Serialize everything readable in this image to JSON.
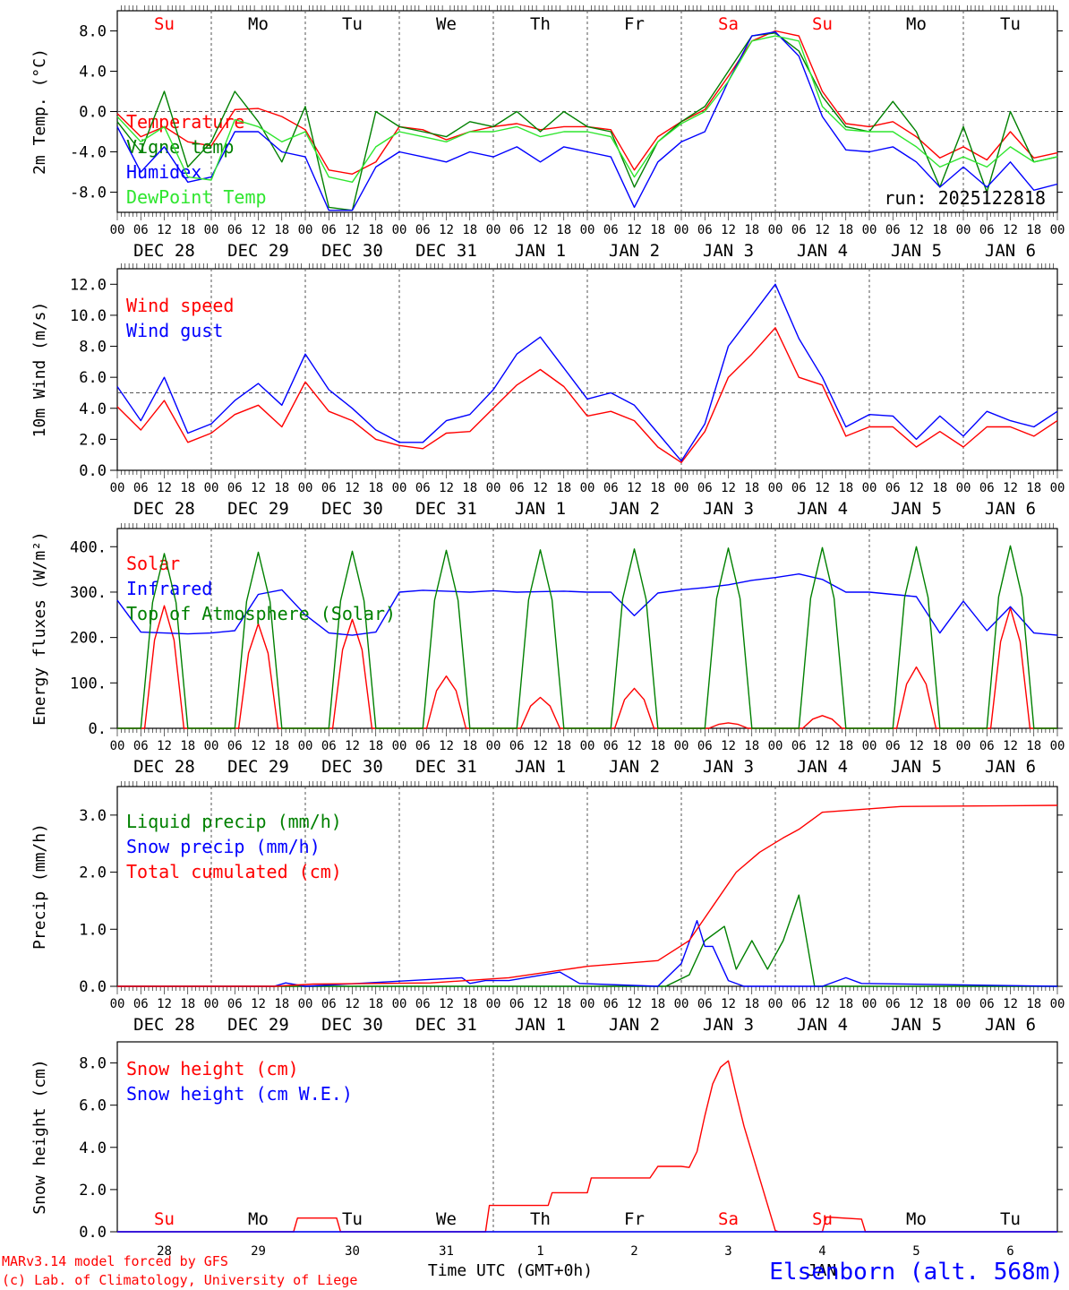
{
  "colors": {
    "red": "#ff0000",
    "green": "#008000",
    "lightgreen": "#2ee62e",
    "blue": "#0000ff",
    "grid": "#555555"
  },
  "days": [
    {
      "abbr": "Su",
      "weekend": true,
      "date": "DEC 28",
      "num": "28"
    },
    {
      "abbr": "Mo",
      "weekend": false,
      "date": "DEC 29",
      "num": "29"
    },
    {
      "abbr": "Tu",
      "weekend": false,
      "date": "DEC 30",
      "num": "30"
    },
    {
      "abbr": "We",
      "weekend": false,
      "date": "DEC 31",
      "num": "31"
    },
    {
      "abbr": "Th",
      "weekend": false,
      "date": "JAN  1",
      "num": "1"
    },
    {
      "abbr": "Fr",
      "weekend": false,
      "date": "JAN  2",
      "num": "2"
    },
    {
      "abbr": "Sa",
      "weekend": true,
      "date": "JAN  3",
      "num": "3"
    },
    {
      "abbr": "Su",
      "weekend": true,
      "date": "JAN  4",
      "num": "4"
    },
    {
      "abbr": "Mo",
      "weekend": false,
      "date": "JAN  5",
      "num": "5"
    },
    {
      "abbr": "Tu",
      "weekend": false,
      "date": "JAN  6",
      "num": "6"
    }
  ],
  "hour_ticks": [
    "00",
    "06",
    "12",
    "18"
  ],
  "run_label": "run: 2025122818",
  "footer": {
    "model": "MARv3.14 model forced by GFS",
    "lab": "(c) Lab. of Climatology, University of Liege",
    "axis_title": "Time UTC (GMT+0h)",
    "month_label": "JAN",
    "station": "Elsenborn (alt. 568m)"
  },
  "chart_data": [
    {
      "type": "line",
      "title": "2m Temp.",
      "ylabel": "2m Temp. (°C)",
      "x_unit": "hours since DEC 28 00 UTC",
      "ylim": [
        -10,
        10
      ],
      "yticks": [
        -8,
        -4,
        0,
        4,
        8
      ],
      "ytick_labels": [
        "-8.0",
        "-4.0",
        "0.0",
        "4.0",
        "8.0"
      ],
      "ref_line": 0,
      "series": [
        {
          "name": "Temperature",
          "color": "red",
          "x": [
            0,
            6,
            12,
            18,
            24,
            30,
            36,
            42,
            48,
            54,
            60,
            66,
            72,
            78,
            84,
            90,
            96,
            102,
            108,
            114,
            120,
            126,
            132,
            138,
            144,
            150,
            156,
            162,
            168,
            174,
            180,
            186,
            192,
            198,
            204,
            210,
            216,
            222,
            228,
            234,
            240
          ],
          "values": [
            -0.2,
            -2.5,
            -1.5,
            -3.0,
            -3.4,
            0.2,
            0.3,
            -0.5,
            -1.8,
            -5.8,
            -6.2,
            -5.0,
            -1.5,
            -1.8,
            -2.8,
            -2.0,
            -1.5,
            -1.2,
            -1.8,
            -1.5,
            -1.5,
            -1.8,
            -5.8,
            -2.5,
            -1.0,
            0.2,
            3.5,
            7.0,
            8.0,
            7.5,
            2.0,
            -1.2,
            -1.5,
            -1.0,
            -2.5,
            -4.6,
            -3.5,
            -4.8,
            -2.0,
            -4.6,
            -4.1
          ]
        },
        {
          "name": "Vigne temp",
          "color": "green",
          "x": [
            0,
            6,
            12,
            18,
            24,
            30,
            36,
            42,
            48,
            54,
            60,
            66,
            72,
            78,
            84,
            90,
            96,
            102,
            108,
            114,
            120,
            126,
            132,
            138,
            144,
            150,
            156,
            162,
            168,
            174,
            180,
            186,
            192,
            198,
            204,
            210,
            216,
            222,
            228,
            234,
            240
          ],
          "values": [
            -1.0,
            -4.0,
            2.0,
            -5.5,
            -3.0,
            2.0,
            -1.0,
            -5.0,
            0.5,
            -9.5,
            -9.8,
            0.0,
            -1.5,
            -2.0,
            -2.5,
            -1.0,
            -1.5,
            0.0,
            -2.0,
            0.0,
            -1.5,
            -2.0,
            -7.5,
            -3.0,
            -1.0,
            0.5,
            4.0,
            7.5,
            7.8,
            6.0,
            1.5,
            -1.5,
            -2.0,
            1.0,
            -2.0,
            -7.5,
            -1.5,
            -8.0,
            0.0,
            -5.0,
            -4.5
          ]
        },
        {
          "name": "Humidex",
          "color": "blue",
          "x": [
            0,
            6,
            12,
            18,
            24,
            30,
            36,
            42,
            48,
            54,
            60,
            66,
            72,
            78,
            84,
            90,
            96,
            102,
            108,
            114,
            120,
            126,
            132,
            138,
            144,
            150,
            156,
            162,
            168,
            174,
            180,
            186,
            192,
            198,
            204,
            210,
            216,
            222,
            228,
            234,
            240
          ],
          "values": [
            -1.5,
            -6.0,
            -3.5,
            -7.0,
            -6.5,
            -2.0,
            -2.0,
            -4.0,
            -4.5,
            -9.8,
            -9.8,
            -5.5,
            -4.0,
            -4.5,
            -5.0,
            -4.0,
            -4.5,
            -3.5,
            -5.0,
            -3.5,
            -4.0,
            -4.5,
            -9.5,
            -5.0,
            -3.0,
            -2.0,
            3.0,
            7.5,
            7.9,
            5.5,
            -0.5,
            -3.8,
            -4.0,
            -3.5,
            -5.0,
            -7.5,
            -5.5,
            -7.5,
            -5.0,
            -7.8,
            -7.2
          ]
        },
        {
          "name": "DewPoint Temp",
          "color": "lightgreen",
          "x": [
            0,
            6,
            12,
            18,
            24,
            30,
            36,
            42,
            48,
            54,
            60,
            66,
            72,
            78,
            84,
            90,
            96,
            102,
            108,
            114,
            120,
            126,
            132,
            138,
            144,
            150,
            156,
            162,
            168,
            174,
            180,
            186,
            192,
            198,
            204,
            210,
            216,
            222,
            228,
            234,
            240
          ],
          "values": [
            -0.5,
            -3.0,
            -1.5,
            -6.5,
            -6.8,
            -0.8,
            -1.5,
            -3.0,
            -2.0,
            -6.5,
            -7.0,
            -3.5,
            -2.0,
            -2.5,
            -3.0,
            -2.0,
            -2.0,
            -1.5,
            -2.5,
            -2.0,
            -2.0,
            -2.5,
            -6.5,
            -3.0,
            -1.2,
            0.0,
            3.0,
            7.0,
            7.5,
            7.0,
            0.5,
            -1.8,
            -2.0,
            -2.0,
            -3.5,
            -5.5,
            -4.5,
            -5.5,
            -3.5,
            -5.0,
            -4.5
          ]
        }
      ]
    },
    {
      "type": "line",
      "title": "10m Wind",
      "ylabel": "10m Wind (m/s)",
      "x_unit": "hours since DEC 28 00 UTC",
      "ylim": [
        0,
        13
      ],
      "yticks": [
        0,
        2,
        4,
        6,
        8,
        10,
        12
      ],
      "ytick_labels": [
        "0.0",
        "2.0",
        "4.0",
        "6.0",
        "8.0",
        "10.0",
        "12.0"
      ],
      "ref_line": 5,
      "series": [
        {
          "name": "Wind speed",
          "color": "red",
          "x": [
            0,
            6,
            12,
            18,
            24,
            30,
            36,
            42,
            48,
            54,
            60,
            66,
            72,
            78,
            84,
            90,
            96,
            102,
            108,
            114,
            120,
            126,
            132,
            138,
            144,
            150,
            156,
            162,
            168,
            174,
            180,
            186,
            192,
            198,
            204,
            210,
            216,
            222,
            228,
            234,
            240
          ],
          "values": [
            4.1,
            2.6,
            4.5,
            1.8,
            2.4,
            3.6,
            4.2,
            2.8,
            5.7,
            3.8,
            3.2,
            2.0,
            1.6,
            1.4,
            2.4,
            2.5,
            4.0,
            5.5,
            6.5,
            5.4,
            3.5,
            3.8,
            3.2,
            1.5,
            0.5,
            2.5,
            6.0,
            7.5,
            9.2,
            6.0,
            5.5,
            2.2,
            2.8,
            2.8,
            1.5,
            2.5,
            1.5,
            2.8,
            2.8,
            2.2,
            3.2
          ]
        },
        {
          "name": "Wind gust",
          "color": "blue",
          "x": [
            0,
            6,
            12,
            18,
            24,
            30,
            36,
            42,
            48,
            54,
            60,
            66,
            72,
            78,
            84,
            90,
            96,
            102,
            108,
            114,
            120,
            126,
            132,
            138,
            144,
            150,
            156,
            162,
            168,
            174,
            180,
            186,
            192,
            198,
            204,
            210,
            216,
            222,
            228,
            234,
            240
          ],
          "values": [
            5.4,
            3.2,
            6.0,
            2.4,
            3.0,
            4.5,
            5.6,
            4.2,
            7.5,
            5.2,
            4.0,
            2.6,
            1.8,
            1.8,
            3.2,
            3.6,
            5.2,
            7.5,
            8.6,
            6.6,
            4.6,
            5.0,
            4.2,
            2.4,
            0.6,
            3.0,
            8.0,
            10.0,
            12.0,
            8.5,
            6.0,
            2.8,
            3.6,
            3.5,
            2.0,
            3.5,
            2.2,
            3.8,
            3.2,
            2.8,
            3.8
          ]
        }
      ]
    },
    {
      "type": "line",
      "title": "Energy fluxes",
      "ylabel": "Energy fluxes (W/m²)",
      "x_unit": "hours since DEC 28 00 UTC",
      "ylim": [
        0,
        440
      ],
      "yticks": [
        0,
        100,
        200,
        300,
        400
      ],
      "ytick_labels": [
        "0.",
        "100.",
        "200.",
        "300.",
        "400."
      ],
      "ref_line": null,
      "solar_peaks": [
        270,
        230,
        240,
        115,
        68,
        88,
        12,
        28,
        135,
        265
      ],
      "toa_peaks": [
        385,
        388,
        390,
        392,
        393,
        395,
        397,
        398,
        400,
        402
      ],
      "series": [
        {
          "name": "Solar",
          "color": "red",
          "values": "diurnal bell from solar_peaks"
        },
        {
          "name": "Infrared",
          "color": "blue",
          "x": [
            0,
            6,
            12,
            18,
            24,
            30,
            36,
            42,
            48,
            54,
            60,
            66,
            72,
            78,
            84,
            90,
            96,
            102,
            108,
            114,
            120,
            126,
            132,
            138,
            144,
            150,
            156,
            162,
            168,
            174,
            180,
            186,
            192,
            198,
            204,
            210,
            216,
            222,
            228,
            234,
            240
          ],
          "values": [
            282,
            212,
            210,
            208,
            210,
            215,
            295,
            305,
            250,
            210,
            205,
            212,
            300,
            304,
            302,
            300,
            303,
            300,
            301,
            302,
            300,
            300,
            248,
            298,
            305,
            310,
            316,
            326,
            332,
            340,
            328,
            300,
            300,
            295,
            290,
            210,
            280,
            215,
            268,
            210,
            205
          ]
        },
        {
          "name": "Top of Atmosphere (Solar)",
          "color": "green",
          "values": "diurnal bell from toa_peaks"
        }
      ]
    },
    {
      "type": "line",
      "title": "Precip",
      "ylabel": "Precip (mm/h)",
      "x_unit": "hours since DEC 28 00 UTC",
      "ylim": [
        0,
        3.5
      ],
      "yticks": [
        0,
        1,
        2,
        3
      ],
      "ytick_labels": [
        "0.0",
        "1.0",
        "2.0",
        "3.0"
      ],
      "ref_line": null,
      "series": [
        {
          "name": "Liquid precip (mm/h)",
          "color": "green",
          "x": [
            0,
            140,
            146,
            150,
            155,
            158,
            162,
            166,
            170,
            174,
            178,
            182,
            186,
            190,
            240
          ],
          "values": [
            0,
            0,
            0.2,
            0.8,
            1.05,
            0.3,
            0.8,
            0.3,
            0.8,
            1.6,
            0.0,
            0,
            0,
            0,
            0
          ]
        },
        {
          "name": "Snow precip (mm/h)",
          "color": "blue",
          "x": [
            0,
            40,
            43,
            48,
            88,
            90,
            94,
            100,
            113,
            118,
            138,
            144,
            148,
            150,
            152,
            156,
            160,
            180,
            186,
            190,
            240
          ],
          "values": [
            0,
            0,
            0.06,
            0,
            0.15,
            0.05,
            0.1,
            0.1,
            0.25,
            0.05,
            0,
            0.4,
            1.15,
            0.7,
            0.7,
            0.1,
            0,
            0,
            0.15,
            0.05,
            0
          ]
        },
        {
          "name": "Total cumulated (cm)",
          "color": "red",
          "x": [
            0,
            40,
            50,
            80,
            100,
            120,
            138,
            146,
            152,
            158,
            164,
            170,
            174,
            180,
            200,
            240
          ],
          "values": [
            0,
            0,
            0.04,
            0.06,
            0.15,
            0.35,
            0.45,
            0.8,
            1.4,
            2.0,
            2.35,
            2.6,
            2.75,
            3.05,
            3.15,
            3.17
          ]
        }
      ]
    },
    {
      "type": "line",
      "title": "Snow height",
      "ylabel": "Snow height (cm)",
      "x_unit": "hours since DEC 28 00 UTC",
      "ylim": [
        0,
        9
      ],
      "yticks": [
        0,
        2,
        4,
        6,
        8
      ],
      "ytick_labels": [
        "0.0",
        "2.0",
        "4.0",
        "6.0",
        "8.0"
      ],
      "ref_line": null,
      "series": [
        {
          "name": "Snow height (cm)",
          "color": "red",
          "x": [
            0,
            45,
            46,
            56,
            57,
            94,
            95,
            110,
            111,
            120,
            121,
            136,
            138,
            144,
            146,
            148,
            150,
            152,
            154,
            156,
            158,
            160,
            168,
            169,
            180,
            181,
            190,
            191,
            240
          ],
          "values": [
            0,
            0,
            0.65,
            0.65,
            0,
            0,
            1.25,
            1.25,
            1.85,
            1.85,
            2.55,
            2.55,
            3.1,
            3.1,
            3.05,
            3.8,
            5.5,
            7.0,
            7.8,
            8.1,
            6.5,
            5.0,
            0.05,
            0,
            0,
            0.7,
            0.6,
            0,
            0
          ]
        },
        {
          "name": "Snow height (cm W.E.)",
          "color": "blue",
          "x": [
            0,
            240
          ],
          "values": [
            0,
            0
          ]
        }
      ]
    }
  ]
}
